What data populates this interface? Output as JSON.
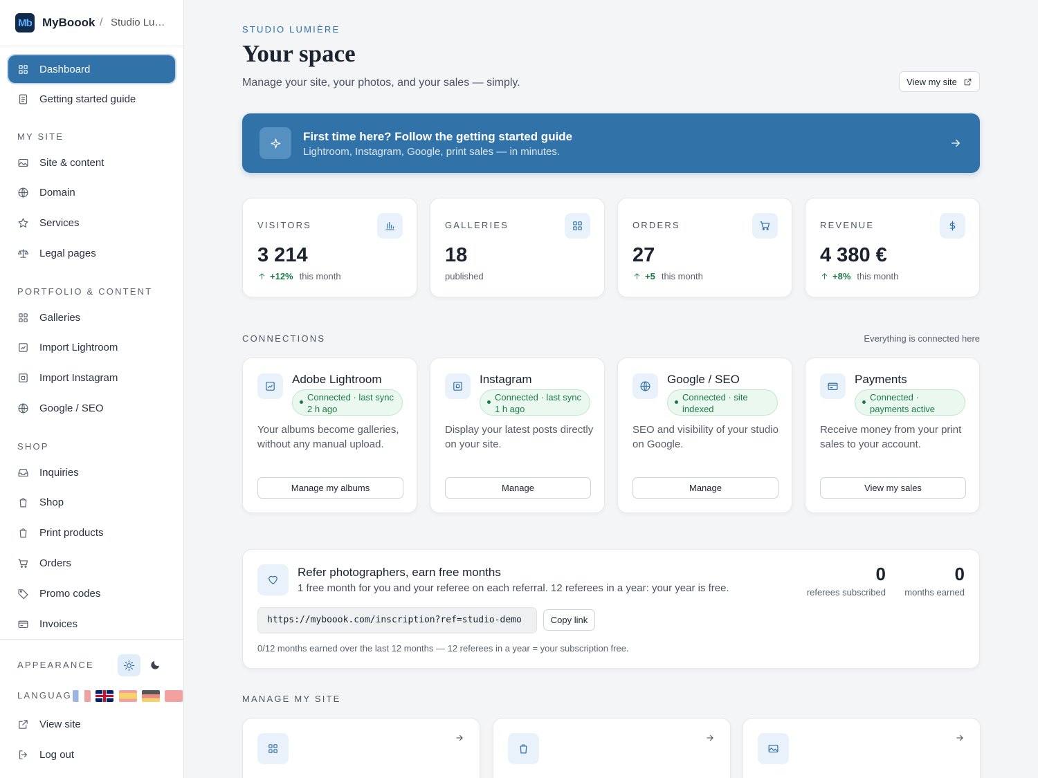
{
  "sidebar": {
    "logo": "Mb",
    "brand": "MyBoook",
    "separator": "/",
    "studio": "Studio Lu…",
    "top": [
      "Dashboard",
      "Getting started guide"
    ],
    "sections": [
      {
        "title": "MY SITE",
        "items": [
          "Site & content",
          "Domain",
          "Services",
          "Legal pages"
        ]
      },
      {
        "title": "PORTFOLIO & CONTENT",
        "items": [
          "Galleries",
          "Import Lightroom",
          "Import Instagram",
          "Google / SEO"
        ]
      },
      {
        "title": "SHOP",
        "items": [
          "Inquiries",
          "Shop",
          "Print products",
          "Orders",
          "Promo codes",
          "Invoices"
        ]
      }
    ],
    "appearance": "APPEARANCE",
    "language": "LANGUAGE",
    "bottom": [
      "View site",
      "Log out"
    ]
  },
  "header": {
    "eyebrow": "STUDIO LUMIÈRE",
    "title": "Your space",
    "subtitle": "Manage your site, your photos, and your sales — simply.",
    "button": "View my site"
  },
  "banner": {
    "title": "First time here? Follow the getting started guide",
    "text": "Lightroom, Instagram, Google, print sales — in minutes."
  },
  "stats": [
    {
      "label": "VISITORS",
      "value": "3 214",
      "delta": "+12%",
      "note": "this month"
    },
    {
      "label": "GALLERIES",
      "value": "18",
      "note": "published"
    },
    {
      "label": "ORDERS",
      "value": "27",
      "delta": "+5",
      "note": "this month"
    },
    {
      "label": "REVENUE",
      "value": "4 380 €",
      "delta": "+8%",
      "note": "this month"
    }
  ],
  "connections": {
    "title": "CONNECTIONS",
    "note": "Everything is connected here",
    "cards": [
      {
        "name": "Adobe Lightroom",
        "status": "Connected · last sync 2 h ago",
        "text": "Your albums become galleries, without any manual upload.",
        "button": "Manage my albums"
      },
      {
        "name": "Instagram",
        "status": "Connected · last sync 1 h ago",
        "text": "Display your latest posts directly on your site.",
        "button": "Manage"
      },
      {
        "name": "Google / SEO",
        "status": "Connected · site indexed",
        "text": "SEO and visibility of your studio on Google.",
        "button": "Manage"
      },
      {
        "name": "Payments",
        "status": "Connected · payments active",
        "text": "Receive money from your print sales to your account.",
        "button": "View my sales"
      }
    ]
  },
  "referral": {
    "title": "Refer photographers, earn free months",
    "text": "1 free month for you and your referee on each referral. 12 referees in a year: your year is free.",
    "stats": [
      {
        "value": 0,
        "label": "referees subscribed"
      },
      {
        "value": 0,
        "label": "months earned"
      }
    ],
    "link": "https://myboook.com/inscription?ref=studio-demo",
    "button": "Copy link",
    "footnote": "0/12 months earned over the last 12 months — 12 referees in a year = your subscription free."
  },
  "manage": {
    "title": "MANAGE MY SITE"
  }
}
